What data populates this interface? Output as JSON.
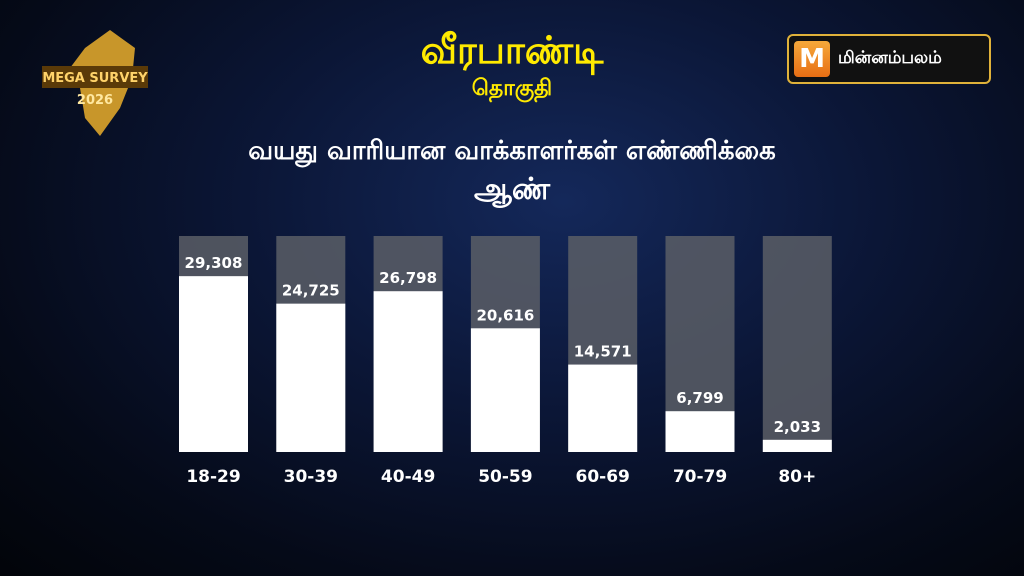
{
  "header": {
    "title": "வீரபாண்டி",
    "subtitle": "தொகுதி",
    "badge_text": "MEGA SURVEY 2026",
    "logo_text": "மின்னம்பலம்"
  },
  "colors": {
    "title": "#ffea00",
    "bar": "#ffffff",
    "track": "#5a5e66",
    "background": "#0b1636"
  },
  "chart_data": {
    "type": "bar",
    "title": "வயது வாரியான வாக்காளர்கள் எண்ணிக்கை",
    "subtitle": "ஆண்",
    "categories": [
      "18-29",
      "30-39",
      "40-49",
      "50-59",
      "60-69",
      "70-79",
      "80+"
    ],
    "values": [
      29308,
      24725,
      26798,
      20616,
      14571,
      6799,
      2033
    ],
    "value_labels": [
      "29,308",
      "24,725",
      "26,798",
      "20,616",
      "14,571",
      "6,799",
      "2,033"
    ],
    "ylim": [
      0,
      36000
    ],
    "grid": false,
    "legend": "none"
  }
}
